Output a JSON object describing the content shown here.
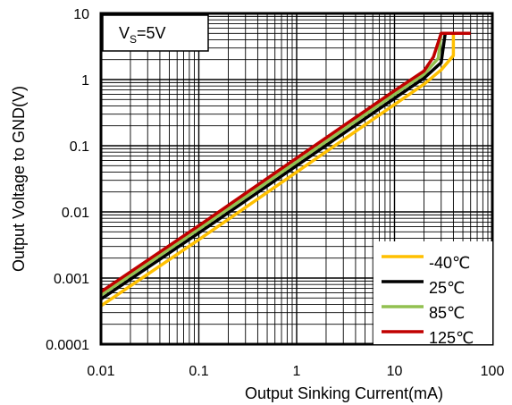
{
  "chart_data": {
    "type": "line",
    "xlabel": "Output Sinking Current(mA)",
    "ylabel": "Output Voltage to GND(V)",
    "x_scale": "log",
    "y_scale": "log",
    "xlim": [
      0.01,
      100
    ],
    "ylim": [
      0.0001,
      10
    ],
    "x_ticks": [
      "0.01",
      "0.1",
      "1",
      "10",
      "100"
    ],
    "y_ticks": [
      "10",
      "1",
      "0.1",
      "0.01",
      "0.001",
      "0.0001"
    ],
    "grid": true,
    "legend_position": "bottom-right",
    "annotation": {
      "main": "V",
      "sub": "S",
      "rest": "=5V"
    },
    "series": [
      {
        "name": "-40℃",
        "color": "#FFC000",
        "x": [
          0.01,
          0.1,
          1,
          10,
          20,
          30,
          40,
          40
        ],
        "y": [
          0.00038,
          0.0038,
          0.04,
          0.42,
          0.85,
          1.4,
          2.3,
          5.0
        ]
      },
      {
        "name": "25℃",
        "color": "#000000",
        "x": [
          0.01,
          0.1,
          1,
          10,
          20,
          30,
          33,
          45
        ],
        "y": [
          0.00048,
          0.0048,
          0.05,
          0.52,
          1.05,
          1.8,
          5.0,
          5.0
        ]
      },
      {
        "name": "85℃",
        "color": "#92C050",
        "x": [
          0.01,
          0.1,
          1,
          10,
          20,
          28,
          30,
          45
        ],
        "y": [
          0.00055,
          0.0055,
          0.057,
          0.6,
          1.2,
          2.1,
          5.0,
          5.0
        ]
      },
      {
        "name": "125℃",
        "color": "#C00000",
        "x": [
          0.01,
          0.1,
          1,
          10,
          20,
          25,
          30,
          60
        ],
        "y": [
          0.00062,
          0.0062,
          0.065,
          0.68,
          1.35,
          2.2,
          5.0,
          5.0
        ]
      }
    ]
  }
}
